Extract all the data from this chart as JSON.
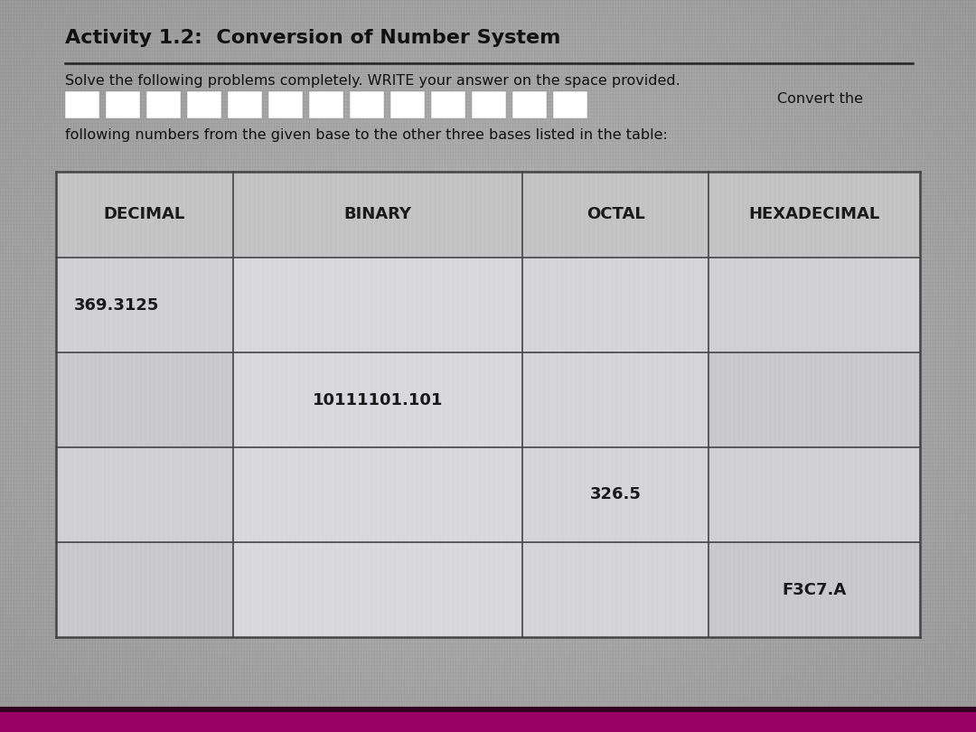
{
  "title": "Activity 1.2:  Conversion of Number System",
  "subtitle_line1": "Solve the following problems completely. WRITE your answer on the space provided.",
  "subtitle_line2": "Convert the",
  "subtitle_line3": "following numbers from the given base to the other three bases listed in the table:",
  "col_headers": [
    "DECIMAL",
    "BINARY",
    "OCTAL",
    "HEXADECIMAL"
  ],
  "table_data": [
    [
      "369.3125",
      "",
      "",
      ""
    ],
    [
      "",
      "10111101.101",
      "",
      ""
    ],
    [
      "",
      "",
      "326.5",
      ""
    ],
    [
      "",
      "",
      "",
      "F3C7.A"
    ]
  ],
  "bg_color": "#b0b0b0",
  "cell_text_color": "#1a1a1a",
  "title_color": "#111111",
  "border_color": "#444444",
  "bottom_bar_color": "#990066",
  "redacted_blocks": 13,
  "redacted_block_color": "#ffffff",
  "redacted_block_border": "#cc3333"
}
